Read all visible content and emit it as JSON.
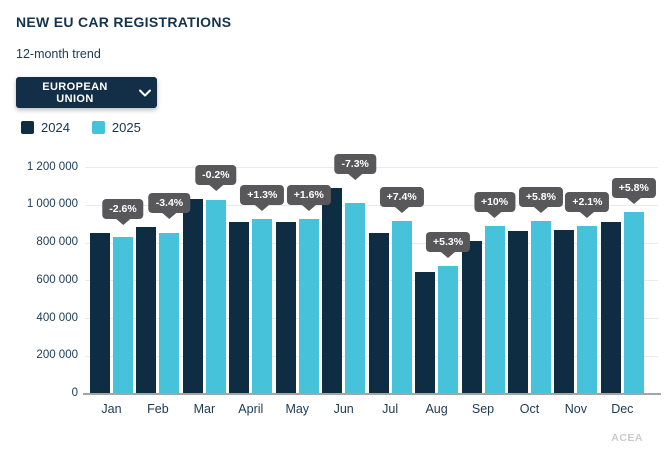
{
  "header": {
    "title": "NEW EU CAR REGISTRATIONS",
    "subtitle": "12-month trend",
    "region_selector": {
      "label": "EUROPEAN UNION"
    },
    "source": "ACEA"
  },
  "legend": [
    {
      "label": "2024",
      "color": "#0e2c42"
    },
    {
      "label": "2025",
      "color": "#46c3da"
    }
  ],
  "chart_data": {
    "type": "bar",
    "title": "NEW EU CAR REGISTRATIONS",
    "subtitle": "12-month trend",
    "categories": [
      "Jan",
      "Feb",
      "Mar",
      "April",
      "May",
      "Jun",
      "Jul",
      "Aug",
      "Sep",
      "Oct",
      "Nov",
      "Dec"
    ],
    "series": [
      {
        "name": "2024",
        "color": "#0e2c42",
        "values": [
          853000,
          884000,
          1032000,
          913000,
          912000,
          1090000,
          852000,
          644000,
          809000,
          866000,
          870000,
          911000
        ]
      },
      {
        "name": "2025",
        "color": "#46c3da",
        "values": [
          831000,
          854000,
          1030000,
          925000,
          927000,
          1010000,
          915000,
          678000,
          889000,
          916000,
          888000,
          963000
        ]
      }
    ],
    "change_labels": [
      "-2.6%",
      "-3.4%",
      "-0.2%",
      "+1.3%",
      "+1.6%",
      "-7.3%",
      "+7.4%",
      "+5.3%",
      "+10%",
      "+5.8%",
      "+2.1%",
      "+5.8%"
    ],
    "xlabel": "",
    "ylabel": "",
    "ylim": [
      0,
      1200000
    ],
    "ytick_step": 200000,
    "ytick_labels": [
      "0",
      "200 000",
      "400 000",
      "600 000",
      "800 000",
      "1 000 000",
      "1 200 000"
    ],
    "grid": true,
    "legend_position": "top-left",
    "badge_color": "#58585b",
    "gridline_color": "#e9eaea"
  }
}
